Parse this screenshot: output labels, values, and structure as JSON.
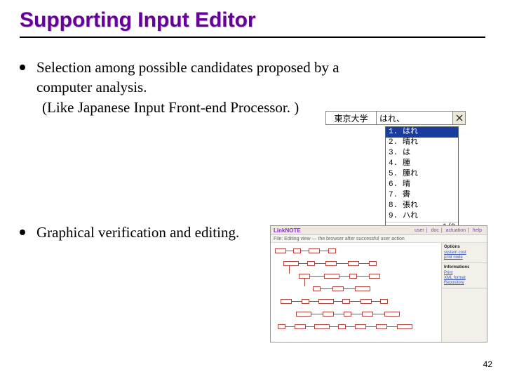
{
  "title": "Supporting Input Editor",
  "bullets": [
    {
      "line1": "Selection among possible candidates proposed by a",
      "line2": "computer analysis.",
      "line3": "(Like Japanese Input Front-end Processor. )"
    },
    {
      "line1": "Graphical verification and editing."
    }
  ],
  "ime": {
    "source": "東京大学",
    "display": "はれ、",
    "candidates": [
      {
        "n": "1.",
        "t": "はれ"
      },
      {
        "n": "2.",
        "t": "晴れ"
      },
      {
        "n": "3.",
        "t": "は"
      },
      {
        "n": "4.",
        "t": "腫"
      },
      {
        "n": "5.",
        "t": "腫れ"
      },
      {
        "n": "6.",
        "t": "晴"
      },
      {
        "n": "7.",
        "t": "霽"
      },
      {
        "n": "8.",
        "t": "張れ"
      },
      {
        "n": "9.",
        "t": "ハれ"
      }
    ],
    "selected_index": 0,
    "counter": "1/9",
    "colors": {
      "highlight_bg": "#1a3c9c",
      "highlight_fg": "#ffffff"
    }
  },
  "graph_editor": {
    "logo": "LinkNOTE",
    "menu": [
      "user",
      "doc",
      "actuation",
      "help"
    ],
    "toolbar": "File: Editing view — the browser after successful user action",
    "side_panels": [
      {
        "title": "Options",
        "lines": [
          "system cost",
          "print node"
        ]
      },
      {
        "title": "Informations",
        "lines": [
          "Print",
          "XML format",
          "Repository"
        ]
      }
    ],
    "colors": {
      "node_border": "#b0443f",
      "edge": "#b0443f",
      "bg": "#ffffff",
      "chrome": "#eee8e0"
    }
  },
  "pagenum": "42"
}
